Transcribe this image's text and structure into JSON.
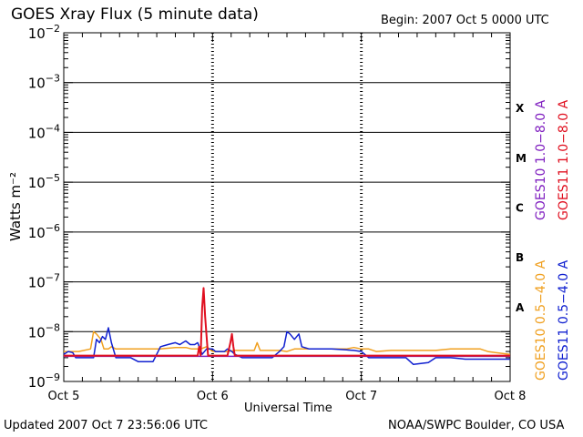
{
  "header": {
    "title": "GOES Xray Flux (5 minute data)",
    "begin": "Begin:  2007 Oct 5 0000 UTC"
  },
  "footer": {
    "updated": "Updated 2007 Oct  7 23:56:06 UTC",
    "credit": "NOAA/SWPC Boulder, CO USA"
  },
  "chart_data": {
    "type": "line",
    "title": "GOES Xray Flux (5 minute data)",
    "xlabel": "Universal Time",
    "ylabel": "Watts m⁻²",
    "yscale": "log",
    "ylim": [
      1e-09,
      0.01
    ],
    "xlim": [
      "Oct 5",
      "Oct 8"
    ],
    "x_units": "days since 2007 Oct 5 0000 UTC",
    "x_ticks": [
      {
        "x": 0,
        "label": "Oct 5"
      },
      {
        "x": 1,
        "label": "Oct 6"
      },
      {
        "x": 2,
        "label": "Oct 7"
      },
      {
        "x": 3,
        "label": "Oct 8"
      }
    ],
    "y_ticks": [
      {
        "exp": -2,
        "base": "10",
        "sup": "−2"
      },
      {
        "exp": -3,
        "base": "10",
        "sup": "−3"
      },
      {
        "exp": -4,
        "base": "10",
        "sup": "−4"
      },
      {
        "exp": -5,
        "base": "10",
        "sup": "−5"
      },
      {
        "exp": -6,
        "base": "10",
        "sup": "−6"
      },
      {
        "exp": -7,
        "base": "10",
        "sup": "−7"
      },
      {
        "exp": -8,
        "base": "10",
        "sup": "−8"
      },
      {
        "exp": -9,
        "base": "10",
        "sup": "−9"
      }
    ],
    "flare_classes": [
      {
        "label": "X",
        "exp": -3.5
      },
      {
        "label": "M",
        "exp": -4.5
      },
      {
        "label": "C",
        "exp": -5.5
      },
      {
        "label": "B",
        "exp": -6.5
      },
      {
        "label": "A",
        "exp": -7.5
      }
    ],
    "grid": "horizontal lines at each decade from 1e-8 to 1e-3",
    "series": [
      {
        "name": "GOES10 0.5−4.0 A",
        "color": "#f0a020",
        "x": [
          0.0,
          0.1,
          0.18,
          0.2,
          0.22,
          0.25,
          0.27,
          0.3,
          0.32,
          0.35,
          0.38,
          0.45,
          0.55,
          0.65,
          0.75,
          0.82,
          0.86,
          0.92,
          0.96,
          1.0,
          1.05,
          1.1,
          1.15,
          1.2,
          1.28,
          1.3,
          1.32,
          1.4,
          1.45,
          1.5,
          1.55,
          1.6,
          1.7,
          1.8,
          1.9,
          1.95,
          2.0,
          2.05,
          2.1,
          2.2,
          2.3,
          2.4,
          2.5,
          2.6,
          2.7,
          2.8,
          2.85,
          2.9,
          3.0
        ],
        "y": [
          4e-09,
          4e-09,
          4.5e-09,
          1e-08,
          9e-09,
          7e-09,
          4.5e-09,
          4.5e-09,
          5e-09,
          4.5e-09,
          4.5e-09,
          4.5e-09,
          4.5e-09,
          4.5e-09,
          4.8e-09,
          4.8e-09,
          4.5e-09,
          4.5e-09,
          5e-09,
          4e-09,
          4e-09,
          4e-09,
          4.2e-09,
          4.2e-09,
          4.2e-09,
          6e-09,
          4.2e-09,
          4.2e-09,
          4.2e-09,
          4e-09,
          4.5e-09,
          4.5e-09,
          4.5e-09,
          4.5e-09,
          4.5e-09,
          4.8e-09,
          4.5e-09,
          4.5e-09,
          4e-09,
          4.2e-09,
          4.2e-09,
          4.2e-09,
          4.2e-09,
          4.5e-09,
          4.5e-09,
          4.5e-09,
          4e-09,
          3.8e-09,
          3.5e-09
        ]
      },
      {
        "name": "GOES11 0.5−4.0 A",
        "color": "#1020d0",
        "x": [
          0.0,
          0.03,
          0.06,
          0.08,
          0.1,
          0.15,
          0.2,
          0.22,
          0.24,
          0.26,
          0.28,
          0.3,
          0.32,
          0.35,
          0.4,
          0.45,
          0.5,
          0.55,
          0.6,
          0.65,
          0.7,
          0.75,
          0.78,
          0.8,
          0.82,
          0.85,
          0.88,
          0.9,
          0.93,
          0.96,
          1.0,
          1.02,
          1.05,
          1.08,
          1.1,
          1.13,
          1.15,
          1.2,
          1.3,
          1.35,
          1.4,
          1.45,
          1.48,
          1.5,
          1.52,
          1.55,
          1.58,
          1.6,
          1.65,
          1.7,
          1.8,
          1.9,
          1.95,
          2.0,
          2.05,
          2.1,
          2.2,
          2.3,
          2.35,
          2.4,
          2.45,
          2.5,
          2.55,
          2.6,
          2.7,
          2.8,
          2.9,
          3.0
        ],
        "y": [
          3.5e-09,
          4e-09,
          3.8e-09,
          3e-09,
          3e-09,
          3e-09,
          3e-09,
          7e-09,
          6e-09,
          8e-09,
          7e-09,
          1.2e-08,
          6e-09,
          3e-09,
          3e-09,
          3e-09,
          2.5e-09,
          2.5e-09,
          2.5e-09,
          5e-09,
          5.5e-09,
          6e-09,
          5.5e-09,
          6e-09,
          6.5e-09,
          5.5e-09,
          5.5e-09,
          6e-09,
          3.5e-09,
          4.5e-09,
          4.5e-09,
          4e-09,
          4e-09,
          4e-09,
          4.5e-09,
          4e-09,
          3.5e-09,
          3e-09,
          3e-09,
          3e-09,
          3e-09,
          4e-09,
          5e-09,
          1e-08,
          9e-09,
          7e-09,
          9e-09,
          5e-09,
          4.5e-09,
          4.5e-09,
          4.5e-09,
          4.3e-09,
          4.2e-09,
          4e-09,
          3e-09,
          3e-09,
          3e-09,
          3e-09,
          2.2e-09,
          2.3e-09,
          2.4e-09,
          3e-09,
          3e-09,
          3e-09,
          2.8e-09,
          2.8e-09,
          2.8e-09,
          2.8e-09
        ]
      },
      {
        "name": "GOES10 1.0−8.0 A",
        "color": "#8020c0",
        "x": [
          0.0,
          3.0
        ],
        "y": [
          3.2e-09,
          3.2e-09
        ]
      },
      {
        "name": "GOES11 1.0−8.0 A",
        "color": "#e01020",
        "x": [
          0.0,
          0.9,
          0.91,
          0.92,
          0.93,
          0.94,
          0.95,
          0.96,
          0.97,
          1.0,
          1.05,
          1.1,
          1.12,
          1.13,
          1.14,
          1.15,
          1.2,
          1.5,
          2.0,
          2.5,
          3.0
        ],
        "y": [
          3.3e-09,
          3.3e-09,
          5e-09,
          3.3e-09,
          3e-08,
          7.5e-08,
          2e-08,
          8e-09,
          3.3e-09,
          3.3e-09,
          3.3e-09,
          3.3e-09,
          6e-09,
          9e-09,
          5e-09,
          3.3e-09,
          3.3e-09,
          3.3e-09,
          3.3e-09,
          3.3e-09,
          3.3e-09
        ]
      }
    ],
    "right_legend": [
      {
        "text": "GOES10 1.0−8.0 A",
        "color": "#8020c0"
      },
      {
        "text": "GOES11 1.0−8.0 A",
        "color": "#e01020"
      },
      {
        "text": "GOES10 0.5−4.0 A",
        "color": "#f0a020"
      },
      {
        "text": "GOES11 0.5−4.0 A",
        "color": "#1020d0"
      }
    ]
  }
}
